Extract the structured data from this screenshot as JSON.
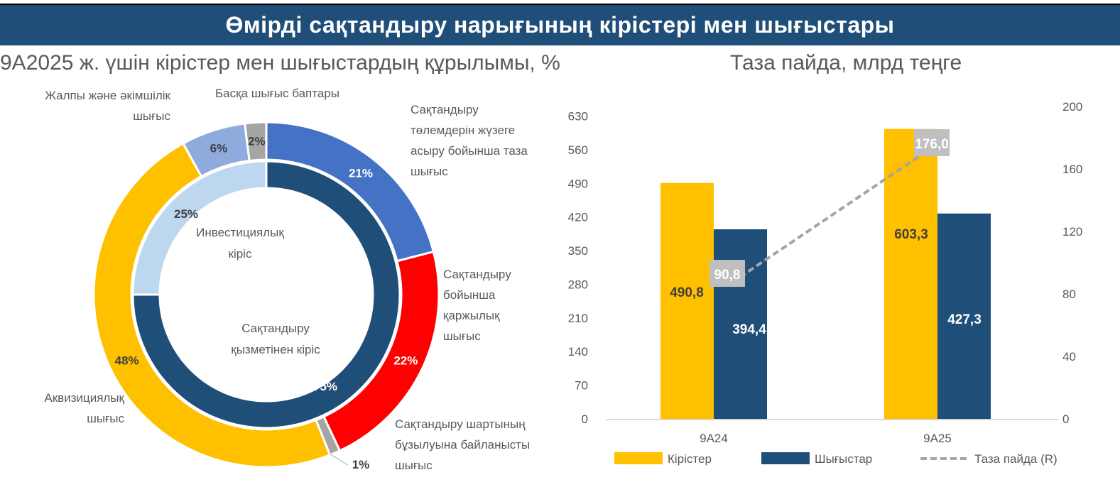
{
  "header": {
    "title": "Өмірді сақтандыру нарығының кірістері мен шығыстары"
  },
  "chart_data": [
    {
      "type": "pie",
      "variant": "double-donut",
      "title": "9А2025 ж. үшін кірістер мен шығыстардың құрылымы,  %",
      "outer_ring": [
        {
          "label": "Сақтандыру төлемдерін жүзеге асыру бойынша таза шығыс",
          "value": 21,
          "value_label": "21%",
          "color": "#4472c4"
        },
        {
          "label": "Сақтандыру бойынша қаржылық шығыс",
          "value": 22,
          "value_label": "22%",
          "color": "#ff0000"
        },
        {
          "label": "Сақтандыру шартының бұзылуына байланысты шығыс",
          "value": 1,
          "value_label": "1%",
          "color": "#a5a5a5"
        },
        {
          "label": "Аквизициялық шығыс",
          "value": 48,
          "value_label": "48%",
          "color": "#ffc000"
        },
        {
          "label": "Жалпы және әкімшілік шығыс",
          "value": 6,
          "value_label": "6%",
          "color": "#8faadc"
        },
        {
          "label": "Басқа шығыс баптары",
          "value": 2,
          "value_label": "2%",
          "color": "#a5a5a5"
        }
      ],
      "inner_ring": [
        {
          "label": "Сақтандыру қызметінен кіріс",
          "value": 75,
          "value_label": "75%",
          "color": "#1f4e79"
        },
        {
          "label": "Инвестициялық кіріс",
          "value": 25,
          "value_label": "25%",
          "color": "#bdd7ee"
        }
      ]
    },
    {
      "type": "bar",
      "title": "Таза пайда, млрд теңге",
      "categories": [
        "9А24",
        "9А25"
      ],
      "series": [
        {
          "name": "Кірістер",
          "values": [
            490.8,
            603.3
          ],
          "value_labels": [
            "490,8",
            "603,3"
          ],
          "color": "#ffc000",
          "axis": "left"
        },
        {
          "name": "Шығыстар",
          "values": [
            394.4,
            427.3
          ],
          "value_labels": [
            "394,4",
            "427,3"
          ],
          "color": "#1f4e79",
          "axis": "left"
        },
        {
          "name": "Таза пайда (R)",
          "type": "line",
          "values": [
            90.8,
            176.0
          ],
          "value_labels": [
            "90,8",
            "176,0"
          ],
          "color": "#a5a5a5",
          "dash": true,
          "axis": "right"
        }
      ],
      "y_left": {
        "ticks": [
          "0",
          "70",
          "140",
          "210",
          "280",
          "350",
          "420",
          "490",
          "560",
          "630"
        ],
        "range": [
          0,
          650
        ]
      },
      "y_right": {
        "ticks": [
          "0",
          "40",
          "80",
          "120",
          "160",
          "200"
        ],
        "range": [
          0,
          200
        ]
      },
      "grid": false,
      "legend": "bottom"
    }
  ]
}
